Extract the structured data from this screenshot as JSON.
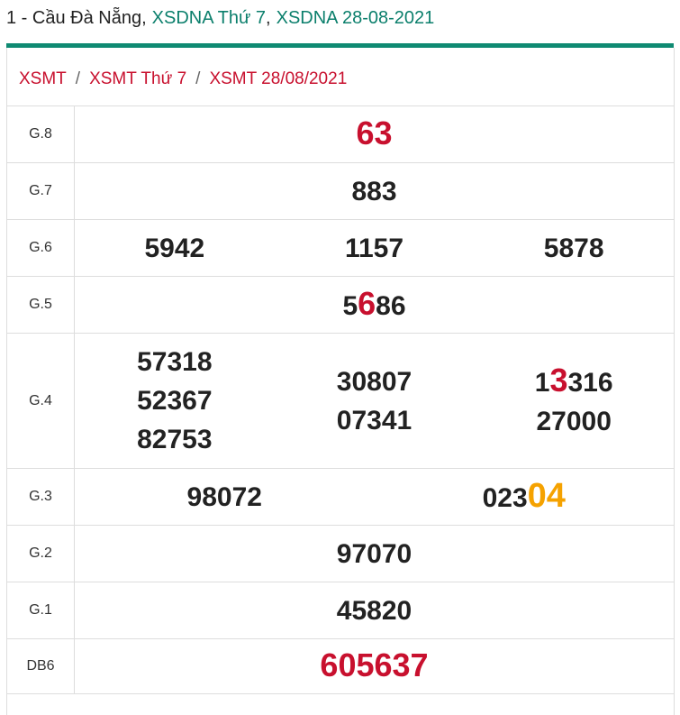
{
  "header": {
    "title": [
      {
        "text": "1 - Cầu Đà Nẵng,",
        "link": false
      },
      {
        "text": "XSDNA Thứ 7",
        "link": true
      },
      {
        "text": ",",
        "link": false
      },
      {
        "text": "XSDNA 28-08-2021",
        "link": true
      }
    ]
  },
  "breadcrumb": {
    "items": [
      "XSMT",
      "XSMT Thứ 7",
      "XSMT 28/08/2021"
    ],
    "separator": "/"
  },
  "table": {
    "rows": [
      {
        "label": "G.8",
        "columns": [
          [
            [
              {
                "text": "63",
                "style": "red"
              }
            ]
          ]
        ]
      },
      {
        "label": "G.7",
        "columns": [
          [
            [
              {
                "text": "883",
                "style": "plain"
              }
            ]
          ]
        ]
      },
      {
        "label": "G.6",
        "columns": [
          [
            [
              {
                "text": "5942",
                "style": "plain"
              }
            ]
          ],
          [
            [
              {
                "text": "1157",
                "style": "plain"
              }
            ]
          ],
          [
            [
              {
                "text": "5878",
                "style": "plain"
              }
            ]
          ]
        ]
      },
      {
        "label": "G.5",
        "columns": [
          [
            [
              {
                "text": "5",
                "style": "plain"
              },
              {
                "text": "6",
                "style": "red"
              },
              {
                "text": "86",
                "style": "plain"
              }
            ]
          ]
        ]
      },
      {
        "label": "G.4",
        "columns": [
          [
            [
              {
                "text": "57318",
                "style": "plain"
              }
            ],
            [
              {
                "text": "52367",
                "style": "plain"
              }
            ],
            [
              {
                "text": "82753",
                "style": "plain"
              }
            ]
          ],
          [
            [
              {
                "text": "30807",
                "style": "plain"
              }
            ],
            [
              {
                "text": "07341",
                "style": "plain"
              }
            ]
          ],
          [
            [
              {
                "text": "1",
                "style": "plain"
              },
              {
                "text": "3",
                "style": "red"
              },
              {
                "text": "316",
                "style": "plain"
              }
            ],
            [
              {
                "text": "27000",
                "style": "plain"
              }
            ]
          ]
        ]
      },
      {
        "label": "G.3",
        "columns": [
          [
            [
              {
                "text": "98072",
                "style": "plain"
              }
            ]
          ],
          [
            [
              {
                "text": "023",
                "style": "plain"
              },
              {
                "text": "04",
                "style": "orange"
              }
            ]
          ]
        ]
      },
      {
        "label": "G.2",
        "columns": [
          [
            [
              {
                "text": "97070",
                "style": "plain"
              }
            ]
          ]
        ]
      },
      {
        "label": "G.1",
        "columns": [
          [
            [
              {
                "text": "45820",
                "style": "plain"
              }
            ]
          ]
        ]
      },
      {
        "label": "DB6",
        "columns": [
          [
            [
              {
                "text": "605637",
                "style": "red"
              }
            ]
          ]
        ]
      }
    ]
  }
}
